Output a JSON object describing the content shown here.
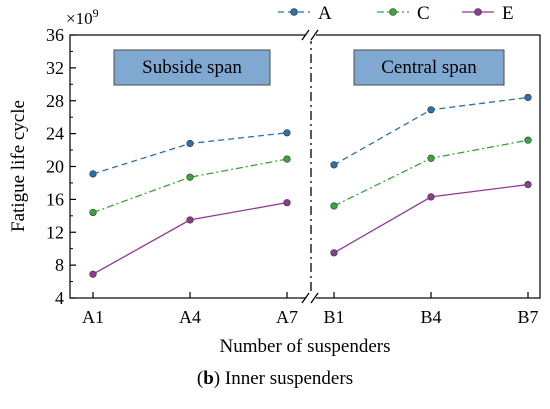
{
  "chart_data": {
    "type": "line",
    "ylabel": "Fatigue life cycle",
    "xlabel": "Number of suspenders",
    "y_multiplier": "×10",
    "y_exponent": "9",
    "ylim": [
      4,
      36
    ],
    "yticks": [
      4,
      8,
      12,
      16,
      20,
      24,
      28,
      32,
      36
    ],
    "grid": false,
    "legend_position": "top-right",
    "panels": [
      {
        "label": "Subside span",
        "categories": [
          "A1",
          "A4",
          "A7"
        ]
      },
      {
        "label": "Central span",
        "categories": [
          "B1",
          "B4",
          "B7"
        ]
      }
    ],
    "series": [
      {
        "name": "A",
        "color": "#2e6faa",
        "dash": "6,4",
        "values": [
          [
            19.1,
            22.8,
            24.1
          ],
          [
            20.2,
            26.9,
            28.4
          ]
        ]
      },
      {
        "name": "C",
        "color": "#3aa53a",
        "dash": "7,3,2,3",
        "values": [
          [
            14.4,
            18.7,
            20.9
          ],
          [
            15.2,
            21.0,
            23.2
          ]
        ]
      },
      {
        "name": "E",
        "color": "#8e3b96",
        "dash": "",
        "values": [
          [
            6.9,
            13.5,
            15.6
          ],
          [
            9.5,
            16.3,
            17.8
          ]
        ]
      }
    ]
  },
  "caption": {
    "label": "b",
    "text": ") Inner suspenders",
    "open": "("
  }
}
